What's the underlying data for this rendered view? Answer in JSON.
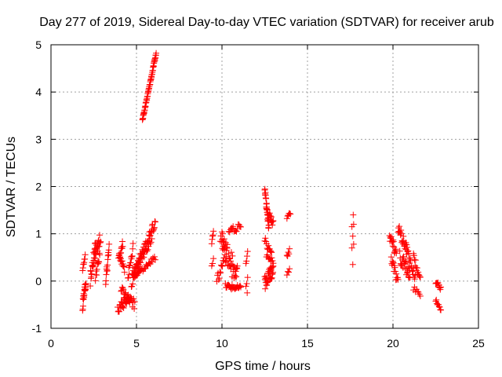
{
  "chart_data": {
    "type": "scatter",
    "title": "Day 277 of 2019, Sidereal Day-to-day VTEC variation (SDTVAR) for receiver arub",
    "xlabel": "GPS time / hours",
    "ylabel": "SDTVAR / TECUs",
    "xlim": [
      0,
      25
    ],
    "ylim": [
      -1,
      5
    ],
    "xticks": [
      "0",
      "5",
      "10",
      "15",
      "20",
      "25"
    ],
    "yticks": [
      "-1",
      "0",
      "1",
      "2",
      "3",
      "4",
      "5"
    ],
    "grid": true,
    "marker": "+",
    "color": "#ff0000",
    "series": [
      {
        "name": "arub",
        "segments": [
          {
            "x0": 1.85,
            "x1": 2.05,
            "y0": -0.55,
            "y1": -0.05,
            "n": 20,
            "spread": 0.15
          },
          {
            "x0": 1.85,
            "x1": 2.0,
            "y0": 0.25,
            "y1": 0.55,
            "n": 8,
            "spread": 0.05
          },
          {
            "x0": 2.3,
            "x1": 2.6,
            "y0": 0.0,
            "y1": 0.7,
            "n": 22,
            "spread": 0.2
          },
          {
            "x0": 2.5,
            "x1": 2.9,
            "y0": 0.5,
            "y1": 0.92,
            "n": 22,
            "spread": 0.12
          },
          {
            "x0": 2.6,
            "x1": 2.85,
            "y0": 0.1,
            "y1": 0.55,
            "n": 12,
            "spread": 0.1
          },
          {
            "x0": 3.2,
            "x1": 3.4,
            "y0": 0.0,
            "y1": 0.7,
            "n": 14,
            "spread": 0.1
          },
          {
            "x0": 3.95,
            "x1": 4.2,
            "y0": 0.45,
            "y1": 0.8,
            "n": 12,
            "spread": 0.08
          },
          {
            "x0": 4.0,
            "x1": 4.3,
            "y0": 0.55,
            "y1": 0.2,
            "n": 12,
            "spread": 0.08
          },
          {
            "x0": 3.9,
            "x1": 4.6,
            "y0": -0.6,
            "y1": -0.35,
            "n": 25,
            "spread": 0.1
          },
          {
            "x0": 4.1,
            "x1": 4.9,
            "y0": -0.2,
            "y1": -0.5,
            "n": 25,
            "spread": 0.1
          },
          {
            "x0": 4.5,
            "x1": 4.8,
            "y0": 0.1,
            "y1": 0.7,
            "n": 14,
            "spread": 0.1
          },
          {
            "x0": 4.7,
            "x1": 5.2,
            "y0": 0.0,
            "y1": 0.4,
            "n": 20,
            "spread": 0.15
          },
          {
            "x0": 4.8,
            "x1": 6.1,
            "y0": 0.1,
            "y1": 1.25,
            "n": 50,
            "spread": 0.1
          },
          {
            "x0": 4.8,
            "x1": 6.1,
            "y0": 0.05,
            "y1": 0.5,
            "n": 28,
            "spread": 0.05
          },
          {
            "x0": 5.0,
            "x1": 5.9,
            "y0": 0.3,
            "y1": 0.9,
            "n": 20,
            "spread": 0.08
          },
          {
            "x0": 5.35,
            "x1": 6.15,
            "y0": 3.4,
            "y1": 4.82,
            "n": 55,
            "spread": 0.03
          },
          {
            "x0": 9.4,
            "x1": 9.5,
            "y0": 0.8,
            "y1": 1.05,
            "n": 5,
            "spread": 0.03
          },
          {
            "x0": 9.4,
            "x1": 9.5,
            "y0": 0.35,
            "y1": 0.45,
            "n": 3,
            "spread": 0.03
          },
          {
            "x0": 9.9,
            "x1": 10.3,
            "y0": 0.9,
            "y1": 0.7,
            "n": 12,
            "spread": 0.08
          },
          {
            "x0": 9.7,
            "x1": 10.1,
            "y0": 0.0,
            "y1": 0.4,
            "n": 12,
            "spread": 0.1
          },
          {
            "x0": 10.0,
            "x1": 10.9,
            "y0": 0.8,
            "y1": 0.1,
            "n": 42,
            "spread": 0.25
          },
          {
            "x0": 10.4,
            "x1": 11.1,
            "y0": 1.05,
            "y1": 1.15,
            "n": 15,
            "spread": 0.08
          },
          {
            "x0": 10.2,
            "x1": 11.1,
            "y0": -0.1,
            "y1": -0.15,
            "n": 24,
            "spread": 0.06
          },
          {
            "x0": 11.4,
            "x1": 11.5,
            "y0": 0.4,
            "y1": 0.6,
            "n": 4,
            "spread": 0.05
          },
          {
            "x0": 11.4,
            "x1": 11.5,
            "y0": -0.1,
            "y1": 0.05,
            "n": 3,
            "spread": 0.05
          },
          {
            "x0": 11.45,
            "x1": 11.5,
            "y0": -0.25,
            "y1": -0.25,
            "n": 1,
            "spread": 0.0
          },
          {
            "x0": 12.5,
            "x1": 12.75,
            "y0": 1.95,
            "y1": 1.1,
            "n": 24,
            "spread": 0.1
          },
          {
            "x0": 12.6,
            "x1": 13.0,
            "y0": 1.5,
            "y1": 1.2,
            "n": 16,
            "spread": 0.08
          },
          {
            "x0": 12.5,
            "x1": 12.9,
            "y0": 0.85,
            "y1": 0.6,
            "n": 12,
            "spread": 0.08
          },
          {
            "x0": 12.6,
            "x1": 13.0,
            "y0": 0.55,
            "y1": 0.4,
            "n": 10,
            "spread": 0.06
          },
          {
            "x0": 12.5,
            "x1": 13.0,
            "y0": -0.05,
            "y1": 0.25,
            "n": 34,
            "spread": 0.15
          },
          {
            "x0": 13.8,
            "x1": 14.0,
            "y0": 1.35,
            "y1": 1.45,
            "n": 6,
            "spread": 0.04
          },
          {
            "x0": 13.8,
            "x1": 13.95,
            "y0": 0.5,
            "y1": 0.65,
            "n": 5,
            "spread": 0.05
          },
          {
            "x0": 13.8,
            "x1": 13.95,
            "y0": 0.15,
            "y1": 0.25,
            "n": 4,
            "spread": 0.04
          },
          {
            "x0": 17.65,
            "x1": 17.7,
            "y0": 1.4,
            "y1": 1.4,
            "n": 1,
            "spread": 0.0
          },
          {
            "x0": 17.6,
            "x1": 17.7,
            "y0": 1.15,
            "y1": 1.2,
            "n": 2,
            "spread": 0.0
          },
          {
            "x0": 17.6,
            "x1": 17.7,
            "y0": 0.95,
            "y1": 0.95,
            "n": 1,
            "spread": 0.0
          },
          {
            "x0": 17.6,
            "x1": 17.7,
            "y0": 0.7,
            "y1": 0.78,
            "n": 2,
            "spread": 0.0
          },
          {
            "x0": 17.6,
            "x1": 17.7,
            "y0": 0.35,
            "y1": 0.35,
            "n": 1,
            "spread": 0.0
          },
          {
            "x0": 19.8,
            "x1": 20.2,
            "y0": 0.95,
            "y1": 0.6,
            "n": 18,
            "spread": 0.12
          },
          {
            "x0": 19.9,
            "x1": 20.3,
            "y0": 0.5,
            "y1": -0.05,
            "n": 16,
            "spread": 0.12
          },
          {
            "x0": 20.3,
            "x1": 20.8,
            "y0": 1.1,
            "y1": 0.7,
            "n": 22,
            "spread": 0.12
          },
          {
            "x0": 20.4,
            "x1": 21.0,
            "y0": 0.5,
            "y1": 0.15,
            "n": 26,
            "spread": 0.15
          },
          {
            "x0": 20.8,
            "x1": 21.3,
            "y0": 0.65,
            "y1": 0.1,
            "n": 18,
            "spread": 0.1
          },
          {
            "x0": 21.2,
            "x1": 21.6,
            "y0": 0.5,
            "y1": 0.0,
            "n": 14,
            "spread": 0.1
          },
          {
            "x0": 21.2,
            "x1": 21.6,
            "y0": -0.15,
            "y1": -0.3,
            "n": 8,
            "spread": 0.05
          },
          {
            "x0": 22.5,
            "x1": 22.8,
            "y0": 0.0,
            "y1": -0.15,
            "n": 10,
            "spread": 0.06
          },
          {
            "x0": 22.5,
            "x1": 22.8,
            "y0": -0.4,
            "y1": -0.58,
            "n": 10,
            "spread": 0.05
          }
        ]
      }
    ]
  }
}
